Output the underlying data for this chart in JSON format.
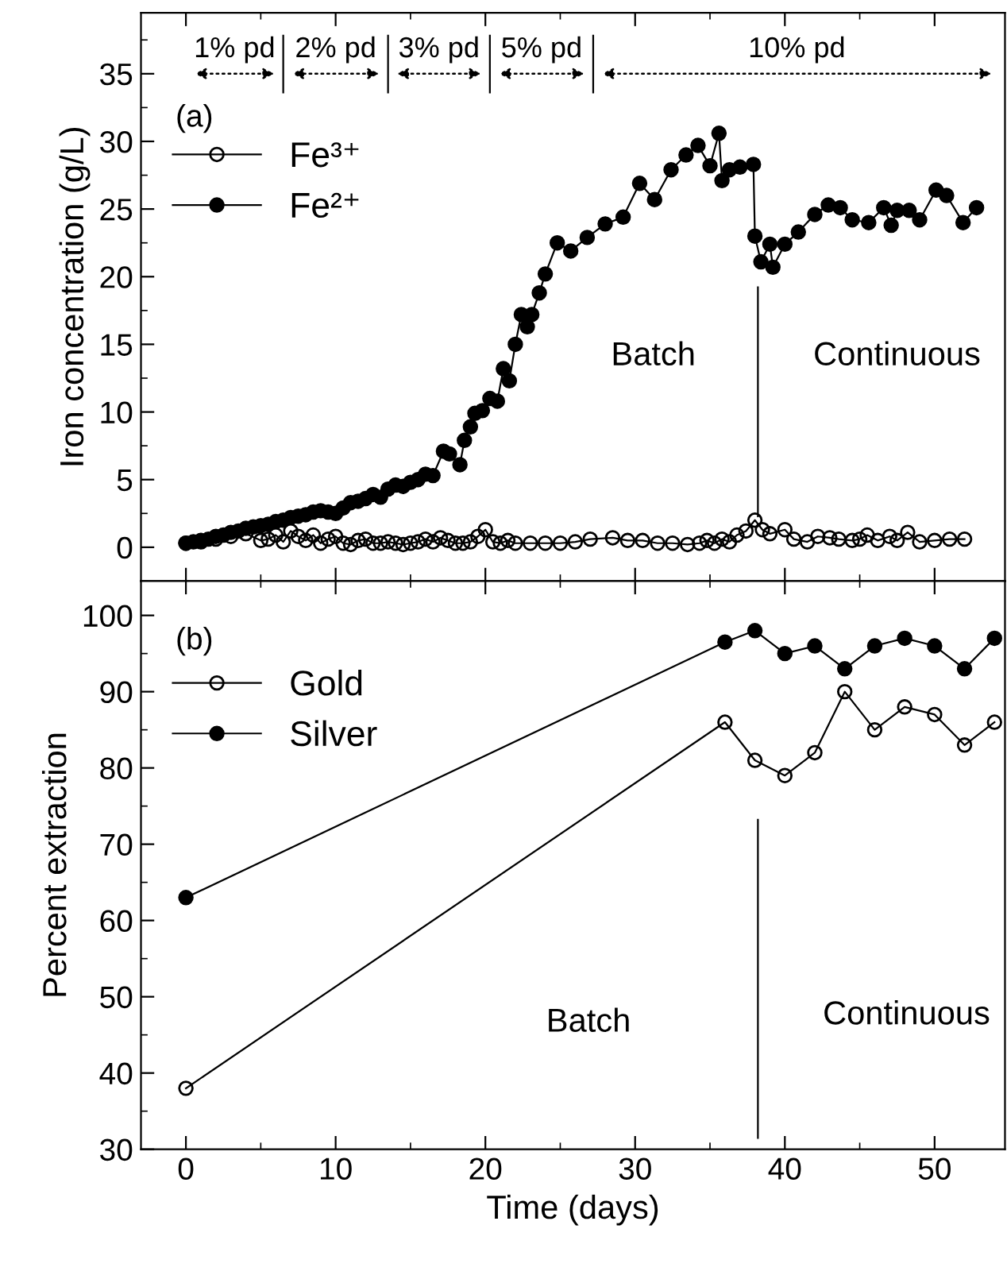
{
  "chart_data": [
    {
      "type": "line",
      "ylabel": "Iron concentration (g/L)",
      "xlim": [
        -3,
        54.7
      ],
      "ylim": [
        -2.5,
        39.5
      ],
      "xticks": [
        0,
        10,
        20,
        30,
        40,
        50
      ],
      "yticks": [
        0,
        5,
        10,
        15,
        20,
        25,
        30,
        35
      ],
      "tick_labels": "y",
      "marker": "circle",
      "line_style": "solid",
      "grid": false,
      "legend": "top left",
      "series": [
        {
          "name": "Fe³⁺",
          "color": "#000000",
          "x": [
            0,
            1,
            2,
            3,
            4,
            5,
            5.5,
            6,
            6.5,
            7,
            7.5,
            8,
            8.5,
            9,
            9.5,
            10,
            10.5,
            11,
            11.5,
            12,
            12.5,
            13,
            13.5,
            14,
            14.5,
            15,
            15.5,
            16,
            16.5,
            17,
            17.5,
            18,
            18.5,
            19,
            19.5,
            20,
            20.5,
            21,
            21.5,
            22,
            23,
            24,
            25,
            26,
            27,
            28.5,
            29.5,
            30.5,
            31.5,
            32.5,
            33.5,
            34.3,
            34.8,
            35.3,
            35.8,
            36.3,
            36.8,
            37.4,
            38,
            38.5,
            39,
            40,
            40.6,
            41.5,
            42.2,
            43,
            43.6,
            44.5,
            45,
            45.5,
            46.2,
            47,
            47.5,
            48.2,
            49,
            50,
            51,
            52
          ],
          "values": [
            0.3,
            0.4,
            0.6,
            0.8,
            1.0,
            0.5,
            0.6,
            0.9,
            0.4,
            1.2,
            0.8,
            0.5,
            0.9,
            0.3,
            0.6,
            0.8,
            0.3,
            0.2,
            0.5,
            0.6,
            0.3,
            0.3,
            0.4,
            0.3,
            0.2,
            0.3,
            0.4,
            0.6,
            0.4,
            0.7,
            0.5,
            0.3,
            0.3,
            0.4,
            0.8,
            1.3,
            0.4,
            0.3,
            0.5,
            0.3,
            0.3,
            0.3,
            0.3,
            0.4,
            0.6,
            0.7,
            0.5,
            0.5,
            0.3,
            0.3,
            0.2,
            0.3,
            0.5,
            0.3,
            0.6,
            0.4,
            0.9,
            1.2,
            2.0,
            1.3,
            1.0,
            1.3,
            0.6,
            0.4,
            0.8,
            0.7,
            0.6,
            0.5,
            0.6,
            0.9,
            0.5,
            0.8,
            0.5,
            1.1,
            0.4,
            0.5,
            0.6,
            0.6
          ]
        },
        {
          "name": "Fe²⁺",
          "color": "#000000",
          "x": [
            0,
            0.5,
            1,
            1.5,
            2,
            2.5,
            3,
            3.5,
            4,
            4.5,
            5,
            5.5,
            6,
            6.5,
            7,
            7.5,
            8,
            8.5,
            9,
            9.5,
            10,
            10.5,
            11,
            11.5,
            12,
            12.5,
            13,
            13.5,
            14,
            14.5,
            15,
            15.5,
            16,
            16.5,
            17.2,
            17.6,
            18.3,
            18.6,
            19,
            19.3,
            19.8,
            20.3,
            20.8,
            21.2,
            21.6,
            22,
            22.4,
            22.8,
            23.1,
            23.6,
            24,
            24.8,
            25.7,
            26.8,
            28,
            29.2,
            30.3,
            31.3,
            32.4,
            33.4,
            34.2,
            35,
            35.6,
            35.8,
            36.3,
            37,
            37.9,
            38,
            38.4,
            39,
            39.2,
            40,
            40.9,
            42,
            42.9,
            43.7,
            44.5,
            45.6,
            46.6,
            47.1,
            47.5,
            48.3,
            49,
            50.1,
            50.8,
            51.9,
            52.8
          ],
          "values": [
            0.3,
            0.4,
            0.5,
            0.6,
            0.8,
            0.9,
            1.1,
            1.2,
            1.4,
            1.5,
            1.6,
            1.7,
            1.9,
            2.0,
            2.2,
            2.3,
            2.4,
            2.6,
            2.7,
            2.6,
            2.5,
            2.9,
            3.3,
            3.4,
            3.6,
            3.9,
            3.7,
            4.3,
            4.6,
            4.5,
            4.8,
            5.0,
            5.4,
            5.3,
            7.1,
            6.9,
            6.1,
            7.9,
            8.9,
            9.9,
            10.1,
            11.0,
            10.8,
            13.2,
            12.3,
            15.0,
            17.2,
            16.3,
            17.2,
            18.8,
            20.2,
            22.5,
            21.9,
            22.9,
            23.9,
            24.4,
            26.9,
            25.7,
            27.9,
            29.0,
            29.7,
            28.2,
            30.6,
            27.1,
            27.9,
            28.1,
            28.3,
            23.0,
            21.1,
            22.4,
            20.7,
            22.4,
            23.3,
            24.6,
            25.3,
            25.1,
            24.2,
            24.0,
            25.1,
            23.8,
            24.9,
            24.9,
            24.2,
            26.4,
            26.0,
            24.0,
            25.1
          ]
        }
      ],
      "ref_lines": [
        {
          "axis": "x",
          "value": 6.5
        },
        {
          "axis": "x",
          "value": 13.5
        },
        {
          "axis": "x",
          "value": 20.3
        },
        {
          "axis": "x",
          "value": 27.2
        },
        {
          "axis": "x",
          "value": 38.2
        }
      ],
      "annotations": [
        "(a)",
        "Batch",
        "Continuous",
        "1% pd",
        "2% pd",
        "3% pd",
        "5% pd",
        "10% pd"
      ]
    },
    {
      "type": "line",
      "xlabel": "Time (days)",
      "ylabel": "Percent extraction",
      "xlim": [
        -3,
        54.7
      ],
      "ylim": [
        30,
        104.5
      ],
      "xticks": [
        0,
        10,
        20,
        30,
        40,
        50
      ],
      "yticks": [
        30,
        40,
        50,
        60,
        70,
        80,
        90,
        100
      ],
      "marker": "circle",
      "line_style": "solid",
      "grid": false,
      "legend": "top left",
      "x": [
        0,
        36,
        38,
        40,
        42,
        44,
        46,
        48,
        50,
        52,
        54
      ],
      "series": [
        {
          "name": "Gold",
          "color": "#000000",
          "values": [
            38,
            86,
            81,
            79,
            82,
            90,
            85,
            88,
            87,
            83,
            86
          ]
        },
        {
          "name": "Silver",
          "color": "#000000",
          "values": [
            63,
            96.5,
            98,
            95,
            96,
            93,
            96,
            97,
            96,
            93,
            97
          ]
        }
      ],
      "ref_lines": [
        {
          "axis": "x",
          "value": 38.2
        }
      ],
      "annotations": [
        "(b)",
        "Batch",
        "Continuous"
      ]
    }
  ]
}
